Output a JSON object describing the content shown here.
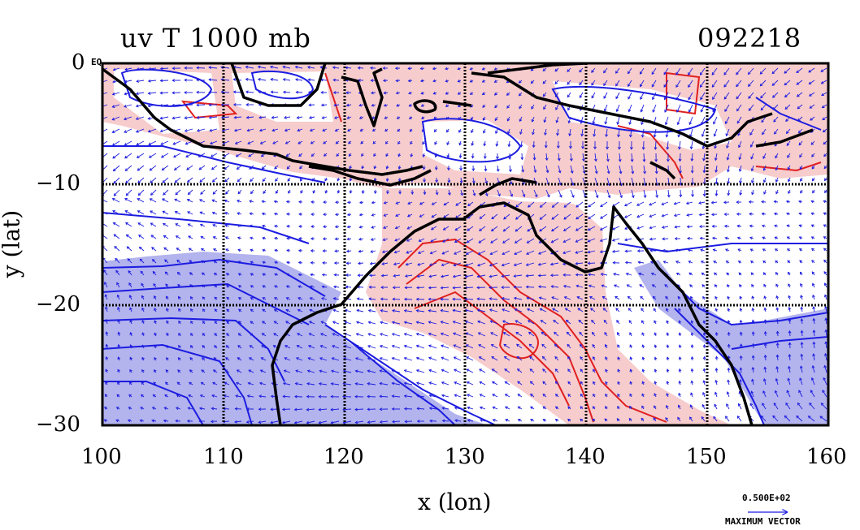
{
  "header": {
    "title": "uv T 1000 mb",
    "timestamp": "092218"
  },
  "axes": {
    "xlabel": "x (lon)",
    "ylabel": "y (lat)",
    "xticks": [
      "100",
      "110",
      "120",
      "130",
      "140",
      "150",
      "160"
    ],
    "yticks": [
      "0",
      "−10",
      "−20",
      "−30"
    ],
    "top_right_of_y0": "EQ",
    "xlim": [
      100,
      160
    ],
    "ylim": [
      -30,
      0
    ],
    "grid": true
  },
  "vector_legend": {
    "value": "0.500E+02",
    "label": "MAXIMUM VECTOR"
  },
  "colors": {
    "warm_fill": "#f7cccc",
    "cold_fill": "#b3b3ee",
    "warm_contour": "#e02020",
    "cold_contour": "#1c1ce0",
    "vectors": "#1c1ce0",
    "coast": "#000000"
  }
}
